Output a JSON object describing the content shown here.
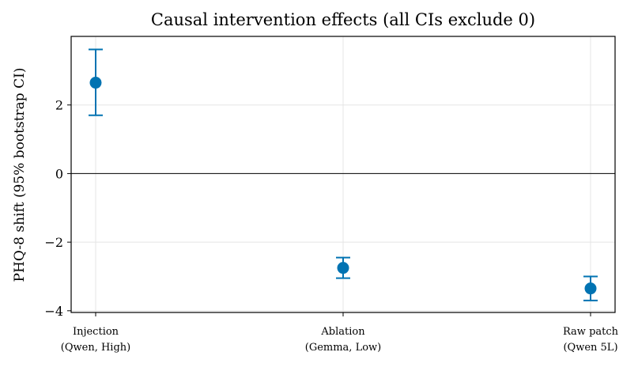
{
  "chart_data": {
    "type": "scatter",
    "title": "Causal intervention effects (all CIs exclude 0)",
    "xlabel": "",
    "ylabel": "PHQ-8 shift (95% bootstrap CI)",
    "categories": [
      [
        "Injection",
        "(Qwen, High)"
      ],
      [
        "Ablation",
        "(Gemma, Low)"
      ],
      [
        "Raw patch",
        "(Qwen 5L)"
      ]
    ],
    "series": [
      {
        "values": [
          2.65,
          -2.75,
          -3.35
        ],
        "ci_low": [
          1.7,
          -3.05,
          -3.7
        ],
        "ci_high": [
          3.62,
          -2.45,
          -3.0
        ]
      }
    ],
    "ylim": [
      -4.05,
      4.0
    ],
    "yticks": [
      -4,
      -2,
      0,
      2
    ],
    "ytick_labels": [
      "−4",
      "−2",
      "0",
      "2"
    ],
    "reference_line_y": 0,
    "grid": true,
    "marker_color": "#0173b2",
    "grid_color": "#e5e5e5"
  }
}
